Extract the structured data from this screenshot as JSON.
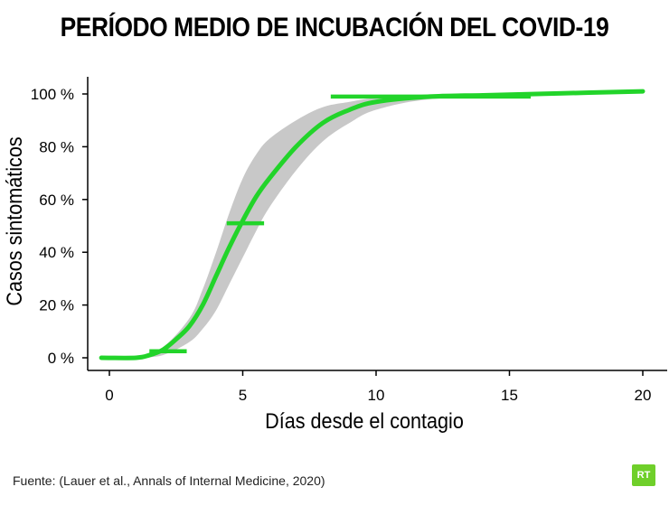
{
  "title": "PERÍODO MEDIO DE INCUBACIÓN DEL COVID-19",
  "source": "Fuente: (Lauer et al., Annals of Internal Medicine, 2020)",
  "logo_text": "RT",
  "colors": {
    "curve": "#22d42a",
    "band": "#c8c8c8",
    "axis": "#000000",
    "logo": "#6fcf2a"
  },
  "chart_data": {
    "type": "line",
    "title": "PERÍODO MEDIO DE INCUBACIÓN DEL COVID-19",
    "xlabel": "Días desde el contagio",
    "ylabel": "Casos sintomáticos",
    "xlim": [
      -0.4,
      21
    ],
    "ylim": [
      -2,
      106
    ],
    "xticks": [
      0,
      5,
      10,
      15,
      20
    ],
    "xtick_labels": [
      "0",
      "5",
      "10",
      "15",
      "20"
    ],
    "yticks": [
      0,
      20,
      40,
      60,
      80,
      100
    ],
    "ytick_labels": [
      "0 %",
      "20 %",
      "40 %",
      "60 %",
      "80 %",
      "100 %"
    ],
    "grid": false,
    "series": [
      {
        "role": "median_curve",
        "x": [
          -0.3,
          1.0,
          1.5,
          2.0,
          2.5,
          3.0,
          3.5,
          4.0,
          4.5,
          5.0,
          5.5,
          6.0,
          7.0,
          8.0,
          9.0,
          10.0,
          12.0,
          14.0,
          16.0,
          18.0,
          20.0
        ],
        "y": [
          0,
          0,
          1,
          3,
          7,
          12,
          20,
          31,
          42,
          52,
          61,
          68,
          80,
          89,
          94,
          97,
          99,
          99.5,
          100,
          100.5,
          101
        ]
      },
      {
        "role": "confidence_band_upper",
        "x": [
          1.0,
          2.0,
          3.0,
          3.5,
          4.0,
          4.5,
          5.0,
          5.5,
          6.0,
          7.0,
          8.0,
          9.0,
          10.0,
          12.0,
          15.5
        ],
        "y": [
          0,
          4,
          15,
          26,
          40,
          55,
          68,
          77,
          83,
          90,
          95,
          97,
          98.5,
          99.5,
          100
        ]
      },
      {
        "role": "confidence_band_lower",
        "x": [
          1.0,
          2.0,
          3.0,
          3.5,
          4.0,
          4.5,
          5.0,
          5.5,
          6.0,
          7.0,
          8.0,
          9.0,
          10.0,
          12.0,
          15.5
        ],
        "y": [
          0,
          1,
          6,
          11,
          18,
          28,
          38,
          48,
          57,
          71,
          82,
          89,
          94,
          98,
          99.5
        ]
      },
      {
        "role": "percentile_markers",
        "points": [
          {
            "y": 2.5,
            "x_from": 1.5,
            "x_to": 2.9
          },
          {
            "y": 51,
            "x_from": 4.4,
            "x_to": 5.8
          },
          {
            "y": 99,
            "x_from": 8.3,
            "x_to": 15.8
          }
        ]
      }
    ]
  }
}
